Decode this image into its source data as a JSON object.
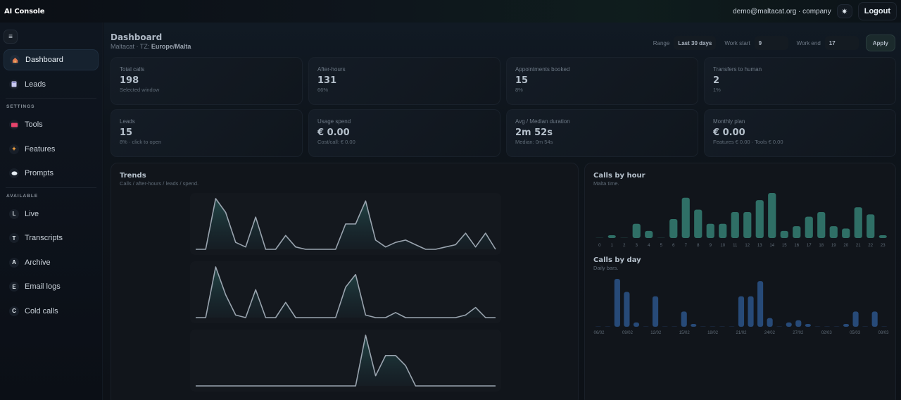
{
  "app": {
    "title": "AI Console"
  },
  "header": {
    "user": "demo@maltacat.org · company",
    "theme_icon": "sun-icon",
    "theme_glyph": "✷",
    "logout_label": "Logout"
  },
  "sidebar": {
    "menu_glyph": "≡",
    "primary": [
      {
        "label": "Dashboard",
        "icon": "house-icon",
        "glyph": "🏠",
        "active": true
      },
      {
        "label": "Leads",
        "icon": "document-icon",
        "glyph": "▤"
      }
    ],
    "settings_heading": "SETTINGS",
    "settings": [
      {
        "label": "Tools",
        "icon": "toolbox-icon",
        "glyph": "▬",
        "color": "#e8446c"
      },
      {
        "label": "Features",
        "icon": "sparkles-icon",
        "glyph": "✦",
        "color": "#f0a040"
      },
      {
        "label": "Prompts",
        "icon": "speech-bubble-icon",
        "glyph": "●",
        "color": "#e6edf3"
      }
    ],
    "available_heading": "AVAILABLE",
    "available": [
      {
        "label": "Live",
        "icon": "letter-l-icon",
        "glyph": "L"
      },
      {
        "label": "Transcripts",
        "icon": "letter-t-icon",
        "glyph": "T"
      },
      {
        "label": "Archive",
        "icon": "letter-a-icon",
        "glyph": "A"
      },
      {
        "label": "Email logs",
        "icon": "letter-e-icon",
        "glyph": "E"
      },
      {
        "label": "Cold calls",
        "icon": "letter-c-icon",
        "glyph": "C"
      }
    ]
  },
  "page": {
    "title": "Dashboard",
    "subtitle_prefix": "Maltacat · TZ: ",
    "timezone": "Europe/Malta"
  },
  "filters": {
    "range_label": "Range",
    "range_value": "Last 30 days",
    "work_start_label": "Work start",
    "work_start_value": "9",
    "work_end_label": "Work end",
    "work_end_value": "17",
    "apply_label": "Apply"
  },
  "cards": [
    {
      "label": "Total calls",
      "value": "198",
      "sub": "Selected window"
    },
    {
      "label": "After-hours",
      "value": "131",
      "sub": "66%"
    },
    {
      "label": "Appointments booked",
      "value": "15",
      "sub": "8%"
    },
    {
      "label": "Transfers to human",
      "value": "2",
      "sub": "1%"
    },
    {
      "label": "Leads",
      "value": "15",
      "sub": "8% · click to open"
    },
    {
      "label": "Usage spend",
      "value": "€ 0.00",
      "sub": "Cost/call: € 0.00"
    },
    {
      "label": "Avg / Median duration",
      "value": "2m 52s",
      "sub": "Median: 0m 54s"
    },
    {
      "label": "Monthly plan",
      "value": "€ 0.00",
      "sub": "Features € 0.00 · Tools € 0.00"
    }
  ],
  "trends": {
    "title": "Trends",
    "subtitle": "Calls / after-hours / leads / spend."
  },
  "calls_by_hour": {
    "title": "Calls by hour",
    "subtitle": "Malta time."
  },
  "calls_by_day": {
    "title": "Calls by day",
    "subtitle": "Daily bars."
  },
  "colors": {
    "accent_teal": "#2f6f66",
    "accent_blue": "#274a78",
    "line": "#9aa4af"
  },
  "chart_data": [
    {
      "type": "area",
      "title": "Trends – Calls",
      "x": [
        1,
        2,
        3,
        4,
        5,
        6,
        7,
        8,
        9,
        10,
        11,
        12,
        13,
        14,
        15,
        16,
        17,
        18,
        19,
        20,
        21,
        22,
        23,
        24,
        25,
        26,
        27,
        28,
        29,
        30,
        31
      ],
      "values": [
        0,
        0,
        22,
        16,
        3,
        1,
        14,
        0,
        0,
        6,
        1,
        0,
        0,
        0,
        0,
        11,
        11,
        21,
        4,
        1,
        3,
        4,
        2,
        0,
        0,
        1,
        2,
        7,
        1,
        7,
        0
      ]
    },
    {
      "type": "area",
      "title": "Trends – After-hours",
      "x": [
        1,
        2,
        3,
        4,
        5,
        6,
        7,
        8,
        9,
        10,
        11,
        12,
        13,
        14,
        15,
        16,
        17,
        18,
        19,
        20,
        21,
        22,
        23,
        24,
        25,
        26,
        27,
        28,
        29,
        30,
        31
      ],
      "values": [
        0,
        0,
        20,
        9,
        1,
        0,
        11,
        0,
        0,
        6,
        0,
        0,
        0,
        0,
        0,
        12,
        17,
        1,
        0,
        0,
        2,
        0,
        0,
        0,
        0,
        0,
        0,
        1,
        4,
        0,
        0
      ]
    },
    {
      "type": "area",
      "title": "Trends – Leads",
      "x": [
        1,
        2,
        3,
        4,
        5,
        6,
        7,
        8,
        9,
        10,
        11,
        12,
        13,
        14,
        15,
        16,
        17,
        18,
        19,
        20,
        21,
        22,
        23,
        24,
        25,
        26,
        27,
        28,
        29,
        30,
        31
      ],
      "values": [
        0,
        0,
        0,
        0,
        0,
        0,
        0,
        0,
        0,
        0,
        0,
        0,
        0,
        0,
        0,
        0,
        0,
        5,
        1,
        3,
        3,
        2,
        0,
        0,
        0,
        0,
        0,
        0,
        0,
        0,
        0
      ]
    },
    {
      "type": "bar",
      "title": "Calls by hour",
      "categories": [
        "0",
        "1",
        "2",
        "3",
        "4",
        "5",
        "6",
        "7",
        "8",
        "9",
        "10",
        "11",
        "12",
        "13",
        "14",
        "15",
        "16",
        "17",
        "18",
        "19",
        "20",
        "21",
        "22",
        "23"
      ],
      "values": [
        0,
        1,
        0,
        6,
        3,
        0,
        8,
        17,
        12,
        6,
        6,
        11,
        11,
        16,
        19,
        3,
        5,
        9,
        11,
        5,
        4,
        13,
        10,
        1
      ]
    },
    {
      "type": "bar",
      "title": "Calls by day",
      "tick_labels": [
        "06/02",
        "09/02",
        "12/02",
        "15/02",
        "18/02",
        "21/02",
        "24/02",
        "27/02",
        "02/03",
        "05/03",
        "08/03"
      ],
      "values": [
        0,
        0,
        22,
        16,
        2,
        0,
        14,
        0,
        0,
        7,
        1,
        0,
        0,
        0,
        0,
        14,
        14,
        21,
        4,
        0,
        2,
        3,
        1,
        0,
        0,
        0,
        1,
        7,
        0,
        7,
        0
      ]
    }
  ]
}
